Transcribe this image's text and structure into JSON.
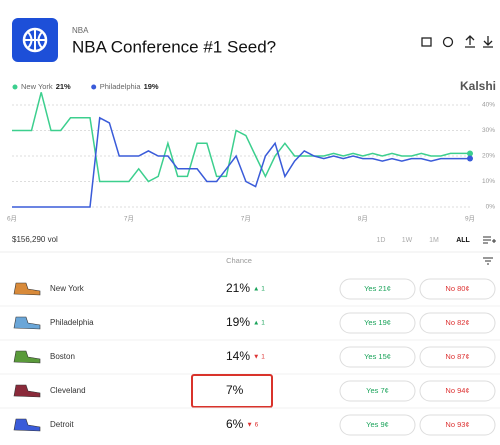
{
  "header": {
    "category": "NBA",
    "title": "NBA Conference #1 Seed?",
    "brand": "Kalshi"
  },
  "chart_data": {
    "type": "line",
    "categories": [
      "6月",
      null,
      null,
      null,
      null,
      null,
      null,
      null,
      null,
      null,
      null,
      null,
      "7月",
      null,
      null,
      null,
      null,
      null,
      null,
      null,
      null,
      null,
      null,
      null,
      "7月",
      null,
      null,
      null,
      null,
      null,
      null,
      null,
      null,
      null,
      null,
      null,
      "8月",
      null,
      null,
      null,
      null,
      null,
      null,
      null,
      null,
      null,
      null,
      "9月"
    ],
    "series": [
      {
        "name": "New York",
        "current": "21%",
        "color": "#3ccf8e",
        "values": [
          30,
          30,
          30,
          45,
          30,
          30,
          35,
          35,
          35,
          10,
          10,
          10,
          10,
          15,
          10,
          12,
          25,
          12,
          12,
          25,
          25,
          12,
          12,
          30,
          28,
          20,
          12,
          20,
          25,
          20,
          20,
          20,
          20,
          21,
          20,
          21,
          20,
          21,
          20,
          21,
          20,
          20,
          21,
          20,
          20,
          21,
          21,
          21
        ]
      },
      {
        "name": "Philadelphia",
        "current": "19%",
        "color": "#3a5bd9",
        "values": [
          0,
          0,
          0,
          0,
          0,
          0,
          0,
          0,
          0,
          35,
          33,
          20,
          20,
          20,
          22,
          20,
          20,
          15,
          15,
          15,
          10,
          10,
          15,
          20,
          10,
          8,
          20,
          25,
          12,
          18,
          22,
          20,
          19,
          20,
          19,
          20,
          19,
          19,
          18,
          19,
          18,
          19,
          19,
          18,
          19,
          19,
          19,
          19
        ]
      }
    ],
    "ylim": [
      0,
      40
    ],
    "yticks": [
      {
        "value": 0,
        "label": "0%"
      },
      {
        "value": 10,
        "label": "10%"
      },
      {
        "value": 20,
        "label": "20%"
      },
      {
        "value": 30,
        "label": "30%"
      },
      {
        "value": 40,
        "label": "40%"
      }
    ],
    "grid": true
  },
  "volume": "$156,290 vol",
  "ranges": [
    "1D",
    "1W",
    "1M",
    "ALL"
  ],
  "table": {
    "header": "Chance",
    "highlight": 3,
    "rows": [
      {
        "name": "New York",
        "chance": "21%",
        "change": "▲ 1",
        "up": true,
        "yes": "Yes 21¢",
        "no": "No 80¢",
        "shoe": "#d88a3a"
      },
      {
        "name": "Philadelphia",
        "chance": "19%",
        "change": "▲ 1",
        "up": true,
        "yes": "Yes 19¢",
        "no": "No 82¢",
        "shoe": "#6aa6d8"
      },
      {
        "name": "Boston",
        "chance": "14%",
        "change": "▼ 1",
        "up": false,
        "yes": "Yes 15¢",
        "no": "No 87¢",
        "shoe": "#5a9a3a"
      },
      {
        "name": "Cleveland",
        "chance": "7%",
        "change": null,
        "up": null,
        "yes": "Yes 7¢",
        "no": "No 94¢",
        "shoe": "#8a2a3a"
      },
      {
        "name": "Detroit",
        "chance": "6%",
        "change": "▼ 6",
        "up": false,
        "yes": "Yes 9¢",
        "no": "No 93¢",
        "shoe": "#3a5bd9"
      }
    ]
  }
}
